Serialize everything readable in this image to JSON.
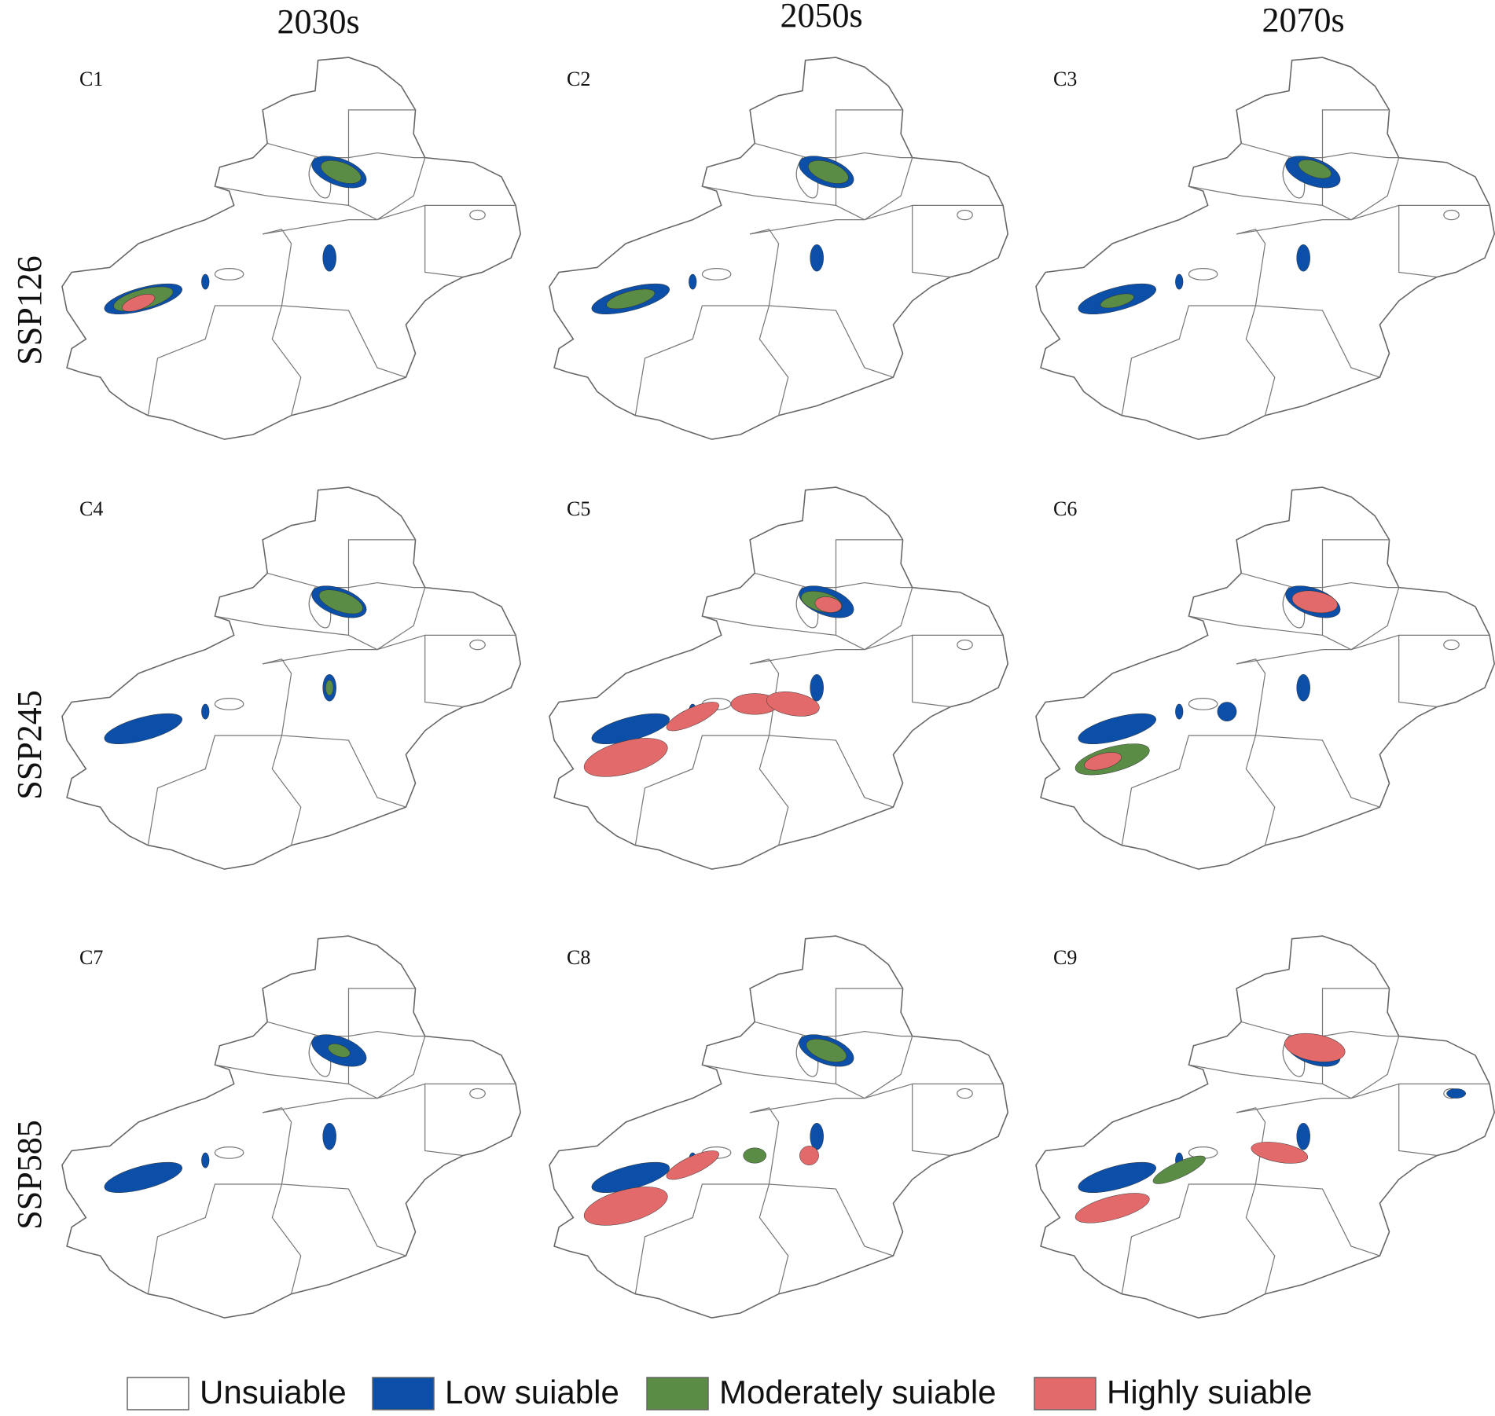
{
  "column_headers": [
    "2030s",
    "2050s",
    "2070s"
  ],
  "row_labels": [
    "SSP126",
    "SSP245",
    "SSP585"
  ],
  "panels": [
    {
      "label": "C1"
    },
    {
      "label": "C2"
    },
    {
      "label": "C3"
    },
    {
      "label": "C4"
    },
    {
      "label": "C5"
    },
    {
      "label": "C6"
    },
    {
      "label": "C7"
    },
    {
      "label": "C8"
    },
    {
      "label": "C9"
    }
  ],
  "legend": [
    {
      "label": "Unsuiable",
      "color": "#ffffff"
    },
    {
      "label": "Low suiable",
      "color": "#0b4fa8"
    },
    {
      "label": "Moderately suiable",
      "color": "#5a8c46"
    },
    {
      "label": "Highly suiable",
      "color": "#e26a6a"
    }
  ]
}
